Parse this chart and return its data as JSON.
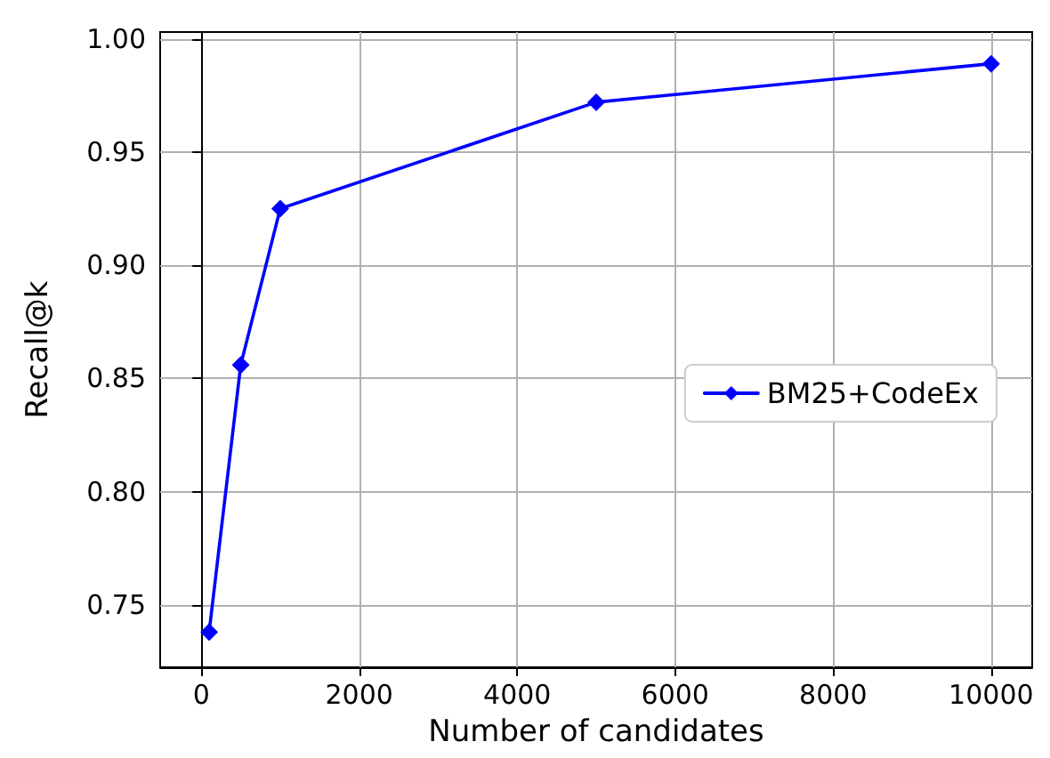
{
  "chart_data": {
    "type": "line",
    "xlabel": "Number of candidates",
    "ylabel": "Recall@k",
    "x": [
      100,
      500,
      1000,
      5000,
      10000
    ],
    "series": [
      {
        "name": "BM25+CodeEx",
        "color": "#0000ff",
        "values": [
          0.738,
          0.856,
          0.925,
          0.972,
          0.989
        ]
      }
    ],
    "xlim": [
      -520,
      10520
    ],
    "xticks": [
      0,
      2000,
      4000,
      6000,
      8000,
      10000
    ],
    "ylim": [
      0.7225,
      1.003
    ],
    "yticks": [
      {
        "value": 0.75,
        "label": "0.75"
      },
      {
        "value": 0.8,
        "label": "0.80"
      },
      {
        "value": 0.85,
        "label": "0.85"
      },
      {
        "value": 0.9,
        "label": "0.90"
      },
      {
        "value": 0.95,
        "label": "0.95"
      },
      {
        "value": 1.0,
        "label": "1.00"
      }
    ],
    "grid": true,
    "legend": "center right",
    "marker": "diamond",
    "line_style": "solid"
  }
}
